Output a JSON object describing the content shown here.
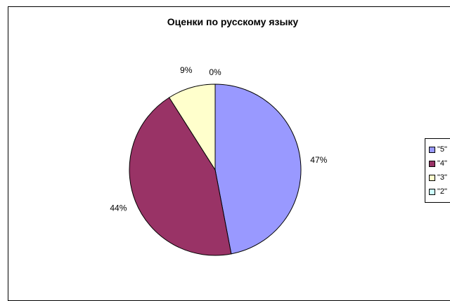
{
  "chart_data": {
    "type": "pie",
    "title": "Оценки по русскому языку",
    "categories": [
      "\"5\"",
      "\"4\"",
      "\"3\"",
      "\"2\""
    ],
    "values": [
      47,
      44,
      9,
      0
    ],
    "labels": [
      "47%",
      "44%",
      "9%",
      "0%"
    ],
    "colors": [
      "#9999FF",
      "#993366",
      "#FFFFCC",
      "#CCFFFF"
    ],
    "legend_position": "right"
  }
}
